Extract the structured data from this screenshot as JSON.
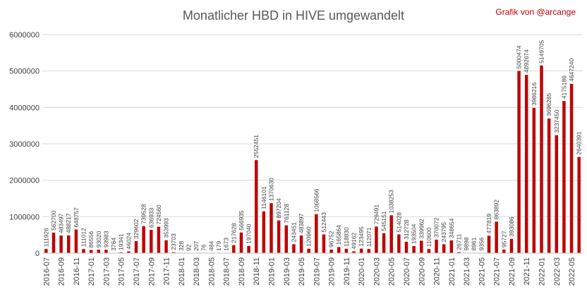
{
  "chart_data": {
    "type": "bar",
    "title": "Monatlicher HBD in HIVE umgewandelt",
    "credit": "Grafik von @arcange",
    "bar_color": "#c00000",
    "ylim": [
      0,
      6000000
    ],
    "yticks": [
      "0",
      "1000000",
      "2000000",
      "3000000",
      "4000000",
      "5000000",
      "6000000"
    ],
    "grid": true,
    "categories": [
      "2016-07",
      "2016-08",
      "2016-09",
      "2016-10",
      "2016-11",
      "2016-12",
      "2017-01",
      "2017-02",
      "2017-03",
      "2017-04",
      "2017-05",
      "2017-06",
      "2017-07",
      "2017-08",
      "2017-09",
      "2017-10",
      "2017-11",
      "2017-12",
      "2018-01",
      "2018-02",
      "2018-03",
      "2018-04",
      "2018-05",
      "2018-06",
      "2018-07",
      "2018-08",
      "2018-09",
      "2018-10",
      "2018-11",
      "2018-12",
      "2019-01",
      "2019-02",
      "2019-03",
      "2019-04",
      "2019-05",
      "2019-06",
      "2019-07",
      "2019-08",
      "2019-09",
      "2019-10",
      "2019-11",
      "2019-12",
      "2020-01",
      "2020-02",
      "2020-03",
      "2020-04",
      "2020-05",
      "2020-06",
      "2020-07",
      "2020-08",
      "2020-09",
      "2020-10",
      "2020-11",
      "2020-12",
      "2021-01",
      "2021-02",
      "2021-03",
      "2021-04",
      "2021-05",
      "2021-06",
      "2021-07",
      "2021-08",
      "2021-09",
      "2021-10",
      "2021-11",
      "2021-12",
      "2022-01",
      "2022-02",
      "2022-03",
      "2022-04",
      "2022-05",
      "2022-06"
    ],
    "xtick_labels": [
      "2016-07",
      "2016-09",
      "2016-11",
      "2017-01",
      "2017-03",
      "2017-05",
      "2017-07",
      "2017-09",
      "2017-11",
      "2018-01",
      "2018-03",
      "2018-05",
      "2018-07",
      "2018-09",
      "2018-11",
      "2019-01",
      "2019-03",
      "2019-05",
      "2019-07",
      "2019-09",
      "2019-11",
      "2020-01",
      "2020-03",
      "2020-05",
      "2020-07",
      "2020-09",
      "2020-11",
      "2021-01",
      "2021-03",
      "2021-05",
      "2021-07",
      "2021-09",
      "2021-11",
      "2022-01",
      "2022-03",
      "2022-05"
    ],
    "values": [
      111926,
      562700,
      483497,
      488217,
      648757,
      111012,
      86556,
      93020,
      93983,
      3764,
      19341,
      46024,
      329602,
      739528,
      636933,
      724560,
      353993,
      23703,
      328,
      92,
      207,
      76,
      484,
      179,
      1673,
      217628,
      566935,
      197040,
      2552451,
      1146101,
      1370630,
      897204,
      761128,
      243451,
      483897,
      120960,
      1068566,
      512443,
      96752,
      165864,
      118830,
      49162,
      123495,
      112071,
      729491,
      545151,
      1038253,
      514028,
      312728,
      193504,
      339962,
      110600,
      370072,
      243795,
      348654,
      26711,
      9898,
      8961,
      9356,
      477819,
      863892,
      95727,
      393086,
      5000474,
      4892674,
      3986216,
      5149705,
      3696285,
      3237450,
      4175186,
      4647240,
      2640391
    ],
    "data_labels": [
      "111926",
      "562700",
      "483497",
      "488217",
      "648757",
      "111012",
      "86556",
      "93020",
      "93983",
      "3764",
      "19341",
      "46024",
      "329602",
      "739528",
      "636933",
      "724560",
      "353993",
      "23703",
      "328",
      "92",
      "207",
      "76",
      "484",
      "179",
      "1673",
      "217628",
      "566935",
      "197040",
      "2552451",
      "1146101",
      "1370630",
      "897204",
      "761128",
      "243451",
      "483897",
      "120960",
      "1068566",
      "512443",
      "96752",
      "165864",
      "118830",
      "49162",
      "123495",
      "112071",
      "729491",
      "545151",
      "1038253",
      "514028",
      "312728",
      "193504",
      "339962",
      "110600",
      "370072",
      "243795",
      "348654",
      "26711",
      "9898",
      "8961",
      "9356",
      "477819",
      "863892",
      "95727",
      "393086",
      "5000474",
      "4892674",
      "3986216",
      "5149705",
      "3696285",
      "3237450",
      "4175186",
      "4647240",
      "2640391"
    ]
  }
}
